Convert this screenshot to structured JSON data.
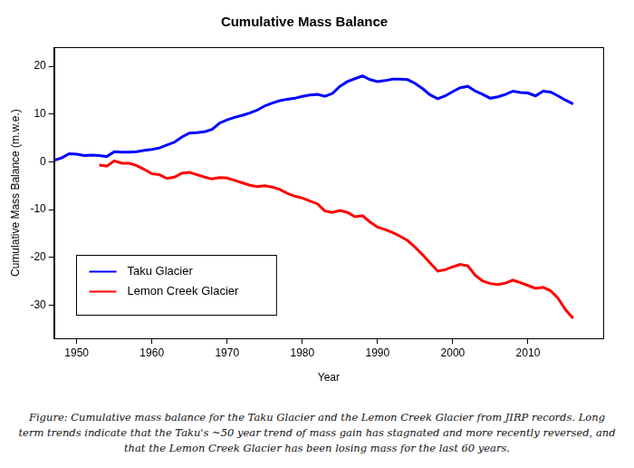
{
  "chart_data": {
    "type": "line",
    "title": "Cumulative Mass Balance",
    "x_label": "Year",
    "y_label": "Cumulative Mass Balance (m.w.e.)",
    "caption": "Figure: Cumulative mass balance for the Taku Glacier and the Lemon Creek Glacier from JIRP records. Long term trends indicate that the Taku's ~50 year trend of mass gain has stagnated and more recently reversed, and that the Lemon Creek Glacier has been losing mass for the last 60 years.",
    "x": [
      1947,
      1948,
      1949,
      1950,
      1951,
      1952,
      1953,
      1954,
      1955,
      1956,
      1957,
      1958,
      1959,
      1960,
      1961,
      1962,
      1963,
      1964,
      1965,
      1966,
      1967,
      1968,
      1969,
      1970,
      1971,
      1972,
      1973,
      1974,
      1975,
      1976,
      1977,
      1978,
      1979,
      1980,
      1981,
      1982,
      1983,
      1984,
      1985,
      1986,
      1987,
      1988,
      1989,
      1990,
      1991,
      1992,
      1993,
      1994,
      1995,
      1996,
      1997,
      1998,
      1999,
      2000,
      2001,
      2002,
      2003,
      2004,
      2005,
      2006,
      2007,
      2008,
      2009,
      2010,
      2011,
      2012,
      2013,
      2014,
      2015,
      2016
    ],
    "series": [
      {
        "name": "Taku Glacier",
        "color": "#0000ff",
        "values": [
          0.3,
          0.8,
          1.7,
          1.6,
          1.3,
          1.4,
          1.3,
          1.1,
          2.1,
          2.0,
          2.0,
          2.1,
          2.4,
          2.6,
          2.9,
          3.5,
          4.1,
          5.2,
          6.0,
          6.1,
          6.3,
          6.8,
          8.1,
          8.8,
          9.3,
          9.7,
          10.2,
          10.8,
          11.7,
          12.3,
          12.8,
          13.1,
          13.3,
          13.7,
          14.0,
          14.1,
          13.7,
          14.3,
          15.8,
          16.8,
          17.4,
          18.0,
          17.2,
          16.8,
          17.0,
          17.3,
          17.3,
          17.2,
          16.4,
          15.3,
          14.0,
          13.2,
          13.8,
          14.7,
          15.5,
          15.8,
          14.8,
          14.1,
          13.3,
          13.6,
          14.1,
          14.8,
          14.5,
          14.4,
          13.8,
          14.8,
          14.6,
          13.8,
          12.9,
          12.1
        ]
      },
      {
        "name": "Lemon Creek Glacier",
        "color": "#ff0000",
        "values": [
          null,
          null,
          null,
          null,
          null,
          null,
          -0.7,
          -0.9,
          0.2,
          -0.3,
          -0.3,
          -0.8,
          -1.6,
          -2.5,
          -2.7,
          -3.5,
          -3.2,
          -2.4,
          -2.2,
          -2.7,
          -3.2,
          -3.6,
          -3.3,
          -3.4,
          -3.9,
          -4.4,
          -4.9,
          -5.2,
          -5.0,
          -5.3,
          -5.8,
          -6.6,
          -7.2,
          -7.6,
          -8.2,
          -8.8,
          -10.3,
          -10.6,
          -10.2,
          -10.6,
          -11.5,
          -11.3,
          -12.6,
          -13.7,
          -14.2,
          -14.8,
          -15.6,
          -16.5,
          -17.9,
          -19.5,
          -21.2,
          -22.9,
          -22.6,
          -22.0,
          -21.5,
          -21.8,
          -23.8,
          -25.0,
          -25.5,
          -25.7,
          -25.4,
          -24.8,
          -25.3,
          -25.9,
          -26.5,
          -26.3,
          -27.0,
          -28.6,
          -31.0,
          -32.8
        ]
      }
    ],
    "xlim": [
      1947,
      2020
    ],
    "ylim": [
      -37,
      24
    ],
    "xticks": [
      1950,
      1960,
      1970,
      1980,
      1990,
      2000,
      2010
    ],
    "yticks": [
      -30,
      -20,
      -10,
      0,
      10,
      20
    ],
    "grid": false,
    "legend": "bottom left"
  }
}
